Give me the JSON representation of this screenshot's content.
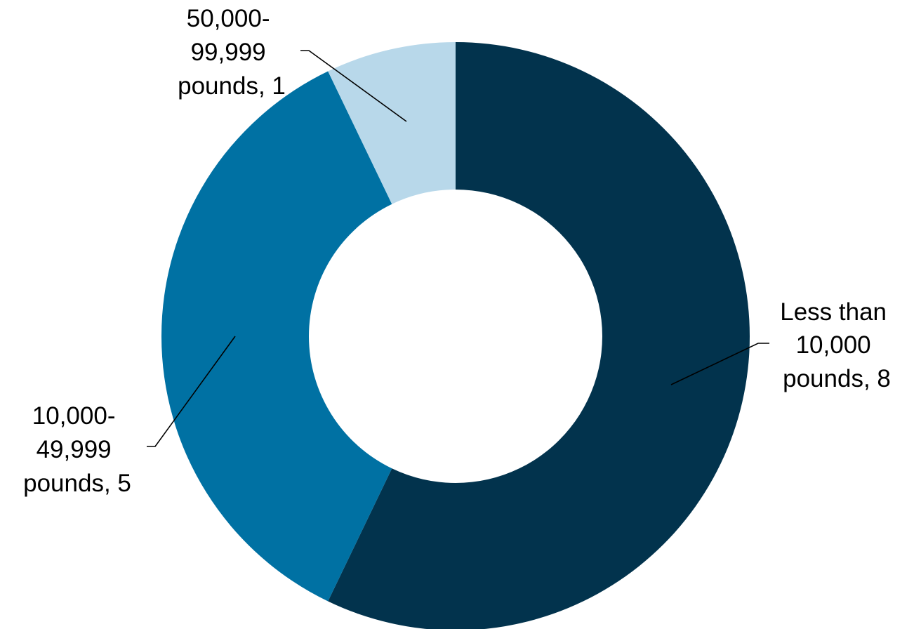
{
  "chart_data": {
    "type": "pie",
    "variant": "donut",
    "title": "",
    "slices": [
      {
        "name": "Less than 10,000 pounds",
        "value": 8,
        "color": "#02334D",
        "label_lines": [
          "Less than",
          "10,000",
          "pounds, 8"
        ]
      },
      {
        "name": "10,000-49,999 pounds",
        "value": 5,
        "color": "#0071A3",
        "label_lines": [
          "10,000-",
          "49,999",
          "pounds, 5"
        ]
      },
      {
        "name": "50,000-99,999 pounds",
        "value": 1,
        "color": "#B8D8EA",
        "label_lines": [
          "50,000-",
          "99,999",
          "pounds, 1"
        ]
      }
    ],
    "start_angle_deg": 0,
    "direction": "clockwise",
    "legend": "none"
  }
}
